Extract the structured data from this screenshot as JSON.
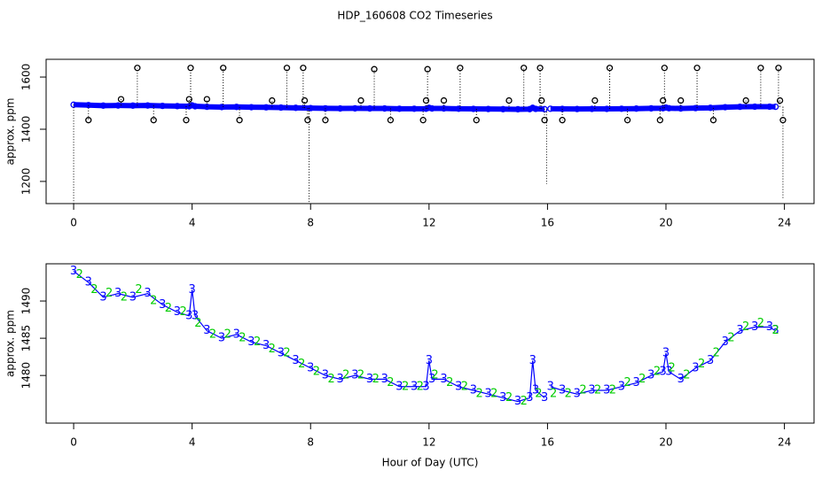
{
  "title": "HDP_160608  CO2 Timeseries",
  "chart_data": [
    {
      "type": "scatter",
      "ylabel": "approx. ppm",
      "xlim": [
        -0.93,
        25.0
      ],
      "xticks": [
        0,
        4,
        8,
        12,
        16,
        20,
        24
      ],
      "ylim": [
        1115,
        1668
      ],
      "yticks": [
        1200,
        1400,
        1600
      ],
      "series": [
        {
          "color": "#0000ff",
          "marker": "o",
          "line": true,
          "x": [
            0,
            0.5,
            1,
            1.5,
            2,
            2.5,
            3,
            3.5,
            3.9,
            4,
            4.1,
            4.5,
            5,
            5.5,
            6,
            6.5,
            7,
            7.5,
            8,
            8.5,
            9,
            9.5,
            10,
            10.5,
            11,
            11.5,
            11.9,
            12,
            12.1,
            12.5,
            13,
            13.5,
            14,
            14.5,
            15,
            15.4,
            15.5,
            15.6,
            15.9,
            16,
            16.1,
            16.5,
            17,
            17.5,
            18,
            18.5,
            19,
            19.5,
            19.9,
            20,
            20.1,
            20.5,
            21,
            21.5,
            22,
            22.5,
            23,
            23.5,
            23.7
          ],
          "values": [
            1494,
            1492.5,
            1490.5,
            1491,
            1490.5,
            1491,
            1489.5,
            1488.5,
            1488,
            1491.5,
            1488,
            1486,
            1485,
            1485.5,
            1484.5,
            1484,
            1483,
            1482,
            1481,
            1480,
            1479.5,
            1480,
            1479.5,
            1479.5,
            1478.5,
            1478.5,
            1478.5,
            1482,
            1479.5,
            1479.5,
            1478.5,
            1478,
            1477.5,
            1477,
            1476.5,
            1477,
            1482,
            1478,
            1477,
            null,
            1478.5,
            1478,
            1477.5,
            1478,
            1478,
            1478.5,
            1479,
            1480,
            1480.5,
            1483,
            1480.5,
            1479.5,
            1481,
            1482,
            1484.5,
            1486,
            1486.5,
            1486.5,
            1486
          ]
        },
        {
          "color": "#000000",
          "marker": "o",
          "stems": true,
          "x": [
            0.5,
            1.6,
            2.15,
            2.7,
            3.8,
            3.9,
            3.95,
            4.5,
            5.05,
            5.6,
            6.7,
            7.2,
            7.75,
            7.8,
            7.9,
            8.5,
            9.7,
            10.15,
            10.7,
            11.8,
            11.9,
            11.95,
            12.5,
            13.05,
            13.6,
            14.7,
            15.2,
            15.75,
            15.8,
            15.9,
            16.5,
            17.6,
            18.1,
            18.7,
            19.8,
            19.9,
            19.95,
            20.5,
            21.05,
            21.6,
            22.7,
            23.2,
            23.8,
            23.85,
            23.95
          ],
          "values": [
            1435,
            1515,
            1635,
            1435,
            1435,
            1515,
            1635,
            1515,
            1635,
            1435,
            1510,
            1635,
            1635,
            1510,
            1435,
            1435,
            1510,
            1630,
            1435,
            1435,
            1510,
            1630,
            1510,
            1635,
            1435,
            1510,
            1635,
            1635,
            1510,
            1435,
            1435,
            1510,
            1635,
            1435,
            1435,
            1510,
            1635,
            1510,
            1635,
            1435,
            1510,
            1635,
            1635,
            1510,
            1435
          ]
        },
        {
          "color": "#000000",
          "stems": true,
          "x": [
            0,
            7.95,
            15.97,
            23.95
          ],
          "values": [
            1115,
            1115,
            1190,
            1130
          ]
        }
      ]
    },
    {
      "type": "scatter",
      "ylabel": "approx. ppm",
      "xlabel": "Hour of Day (UTC)",
      "xlim": [
        -0.93,
        25.0
      ],
      "xticks": [
        0,
        4,
        8,
        12,
        16,
        20,
        24
      ],
      "ylim": [
        1473.6,
        1495
      ],
      "yticks": [
        1480,
        1485,
        1490
      ],
      "series": [
        {
          "color": "#0000ff",
          "marker": "3",
          "line": true,
          "x": [
            0,
            0.5,
            1,
            1.5,
            2,
            2.5,
            3,
            3.5,
            3.9,
            4,
            4.1,
            4.5,
            5,
            5.5,
            6,
            6.5,
            7,
            7.5,
            8,
            8.5,
            9,
            9.5,
            10,
            10.5,
            11,
            11.5,
            11.9,
            12,
            12.1,
            12.5,
            13,
            13.5,
            14,
            14.5,
            15,
            15.4,
            15.5,
            15.6,
            15.9,
            16,
            16.1,
            16.5,
            17,
            17.5,
            18,
            18.5,
            19,
            19.5,
            19.9,
            20,
            20.1,
            20.5,
            21,
            21.5,
            22,
            22.5,
            23,
            23.5,
            23.7
          ],
          "values": [
            1494,
            1492.5,
            1490.5,
            1491,
            1490.5,
            1491,
            1489.5,
            1488.5,
            1488,
            1491.5,
            1488,
            1486,
            1485,
            1485.5,
            1484.5,
            1484,
            1483,
            1482,
            1481,
            1480,
            1479.5,
            1480,
            1479.5,
            1479.5,
            1478.5,
            1478.5,
            1478.5,
            1482,
            1479.5,
            1479.5,
            1478.5,
            1478,
            1477.5,
            1477,
            1476.5,
            1477,
            1482,
            1478,
            1477,
            null,
            1478.5,
            1478,
            1477.5,
            1478,
            1478,
            1478.5,
            1479,
            1480,
            1480.5,
            1483,
            1480.5,
            1479.5,
            1481,
            1482,
            1484.5,
            1486,
            1486.5,
            1486.5,
            1486
          ]
        },
        {
          "color": "#00cc00",
          "marker": "2",
          "x": [
            0.2,
            0.7,
            1.2,
            1.7,
            2.2,
            2.7,
            3.2,
            3.7,
            4.2,
            4.7,
            5.2,
            5.7,
            6.2,
            6.7,
            7.2,
            7.7,
            8.2,
            8.7,
            9.2,
            9.7,
            10.2,
            10.7,
            11.2,
            11.7,
            12.2,
            12.7,
            13.2,
            13.7,
            14.2,
            14.7,
            15.2,
            15.7,
            16.2,
            16.7,
            17.2,
            17.7,
            18.2,
            18.7,
            19.2,
            19.7,
            20.2,
            20.7,
            21.2,
            21.7,
            22.2,
            22.7,
            23.2,
            23.7
          ],
          "values": [
            1493.5,
            1491.5,
            1491,
            1490.5,
            1491.5,
            1490,
            1489,
            1488.5,
            1487,
            1485.5,
            1485.5,
            1485,
            1484.5,
            1483.5,
            1483,
            1481.5,
            1480.5,
            1479.5,
            1480,
            1480,
            1479.5,
            1479,
            1478.5,
            1478.5,
            1480,
            1479,
            1478.5,
            1477.5,
            1477.5,
            1477,
            1476.5,
            1477.5,
            1477.5,
            1477.5,
            1478,
            1478,
            1478,
            1479,
            1479.5,
            1480.5,
            1481,
            1480,
            1481.5,
            1483,
            1485,
            1486.5,
            1487,
            1486
          ]
        }
      ]
    }
  ]
}
